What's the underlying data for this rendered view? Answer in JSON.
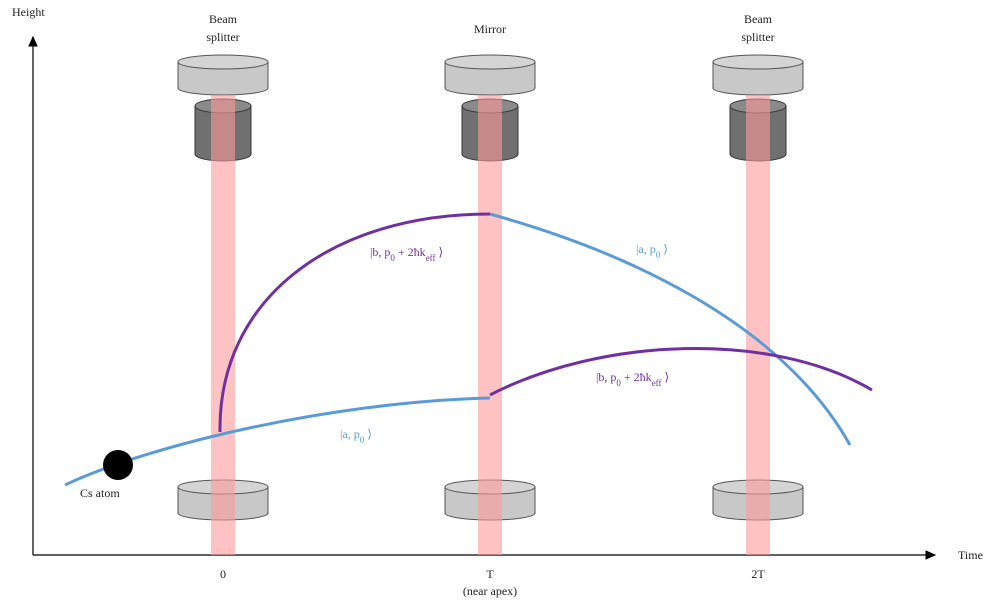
{
  "axes": {
    "y_label": "Height",
    "x_label": "Time"
  },
  "top_labels": [
    {
      "lines": [
        "Beam",
        "splitter"
      ]
    },
    {
      "lines": [
        "Mirror"
      ]
    },
    {
      "lines": [
        "Beam",
        "splitter"
      ]
    }
  ],
  "time_ticks": [
    {
      "label": "0"
    },
    {
      "label": "T",
      "note": "(near apex)"
    },
    {
      "label": "2T"
    }
  ],
  "states": [
    {
      "segments": [
        "|b, p",
        "0",
        " + 2ħk",
        "eff",
        " ⟩"
      ]
    },
    {
      "segments": [
        "|a, p",
        "0",
        " ⟩"
      ]
    },
    {
      "segments": [
        "|b, p",
        "0",
        " + 2ħk",
        "eff",
        " ⟩"
      ]
    },
    {
      "segments": [
        "|a, p",
        "0",
        " ⟩"
      ]
    }
  ],
  "atom_label": "Cs atom"
}
